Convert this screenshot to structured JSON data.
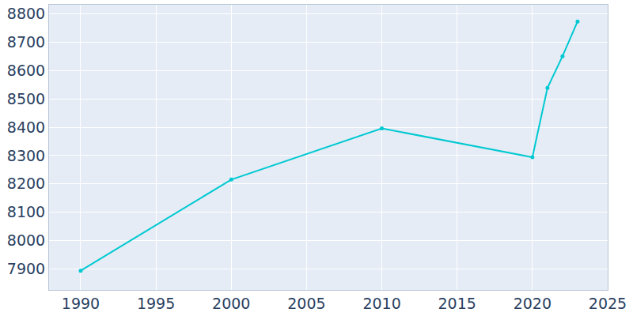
{
  "chart_data": {
    "type": "line",
    "x": [
      1990,
      2000,
      2010,
      2020,
      2021,
      2022,
      2023
    ],
    "values": [
      7893,
      8215,
      8396,
      8294,
      8539,
      8651,
      8774
    ],
    "color": "#00c9d1",
    "marker": "circle",
    "line_style": "solid",
    "xlim": [
      1987.9,
      2025
    ],
    "xticks": [
      1990,
      1995,
      2000,
      2005,
      2010,
      2015,
      2020,
      2025
    ],
    "ylim": [
      7825,
      8833
    ],
    "yticks": [
      7900,
      8000,
      8100,
      8200,
      8300,
      8400,
      8500,
      8600,
      8700,
      8800
    ],
    "grid": true
  }
}
